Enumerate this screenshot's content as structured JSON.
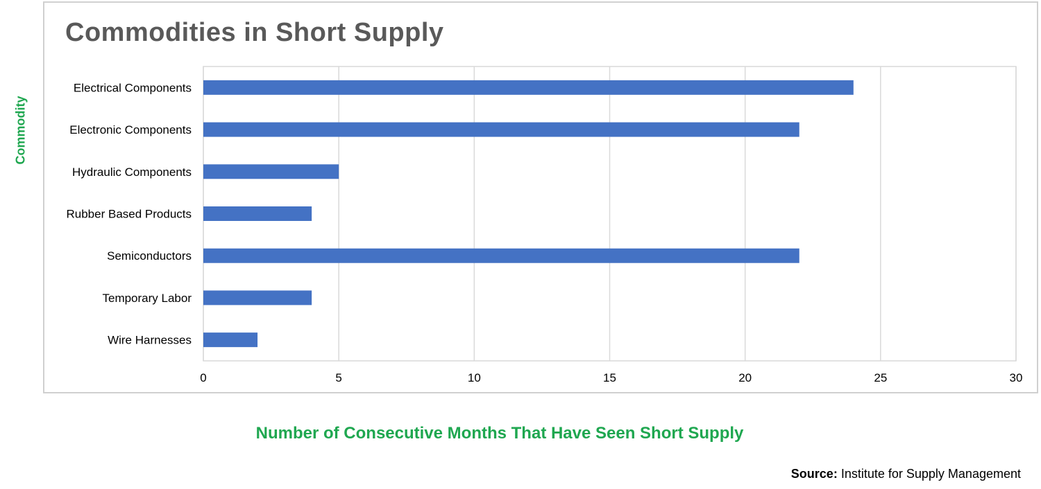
{
  "chart_data": {
    "type": "bar",
    "orientation": "horizontal",
    "title": "Commodities in Short Supply",
    "xlabel": "Number of Consecutive Months That Have Seen Short Supply",
    "ylabel": "Commodity",
    "categories": [
      "Electrical Components",
      "Electronic Components",
      "Hydraulic Components",
      "Rubber Based Products",
      "Semiconductors",
      "Temporary Labor",
      "Wire Harnesses"
    ],
    "values": [
      24,
      22,
      5,
      4,
      22,
      4,
      2
    ],
    "xlim": [
      0,
      30
    ],
    "xticks": [
      0,
      5,
      10,
      15,
      20,
      25,
      30
    ],
    "grid": "vertical",
    "bar_color": "#4472c4",
    "legend": "none"
  },
  "colors": {
    "title": "#595959",
    "axis_title": "#1fa750",
    "bar": "#4472c4",
    "grid": "#d9d9d9"
  },
  "source": {
    "label": "Source:",
    "text": "Institute for Supply Management"
  }
}
